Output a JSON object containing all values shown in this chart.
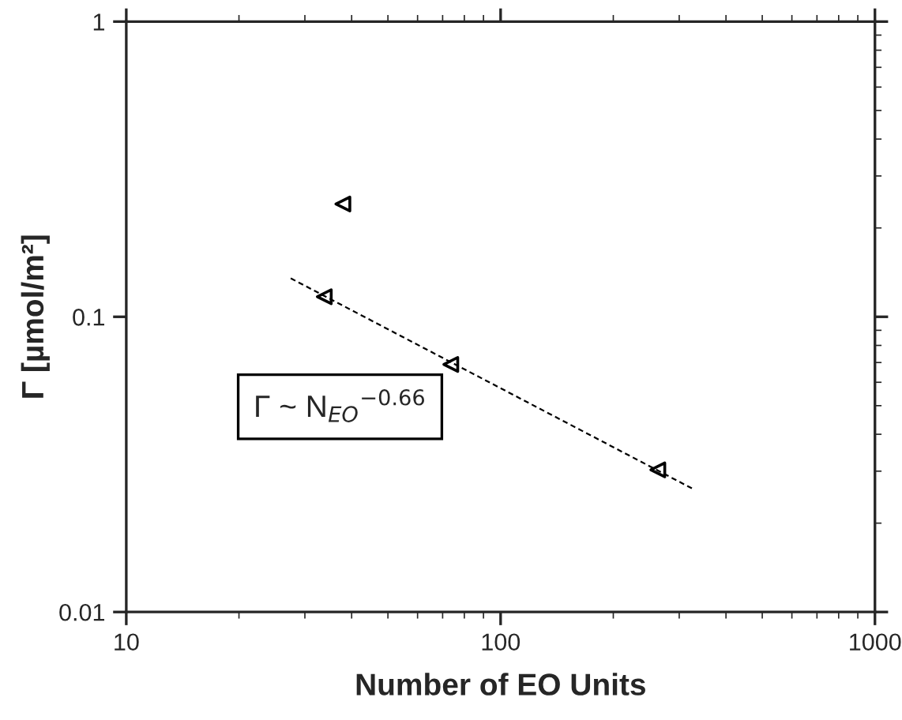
{
  "chart_data": {
    "type": "scatter",
    "xlabel": "Number of EO Units",
    "ylabel": "Γ [µmol/m²]",
    "log": "xy",
    "xlim": [
      10,
      1000
    ],
    "ylim": [
      0.01,
      1
    ],
    "xticks": [
      10,
      100,
      1000
    ],
    "yticks": [
      0.01,
      0.1,
      1
    ],
    "grid": false,
    "legend": false,
    "marker": "triangle",
    "annotations": [
      "Γ ~ N$_{EO}$$^{−0.66}$"
    ],
    "series": [
      {
        "color": "#000000",
        "x": [
          37.9,
          33.8,
          73.6,
          263
        ],
        "values": [
          0.241,
          0.117,
          0.069,
          0.0303
        ]
      },
      {
        "type": "line",
        "color": "#000000",
        "line_style": "dashed",
        "marker": "none",
        "x": [
          27.5,
          325
        ],
        "values": [
          0.135,
          0.0262
        ]
      }
    ]
  }
}
